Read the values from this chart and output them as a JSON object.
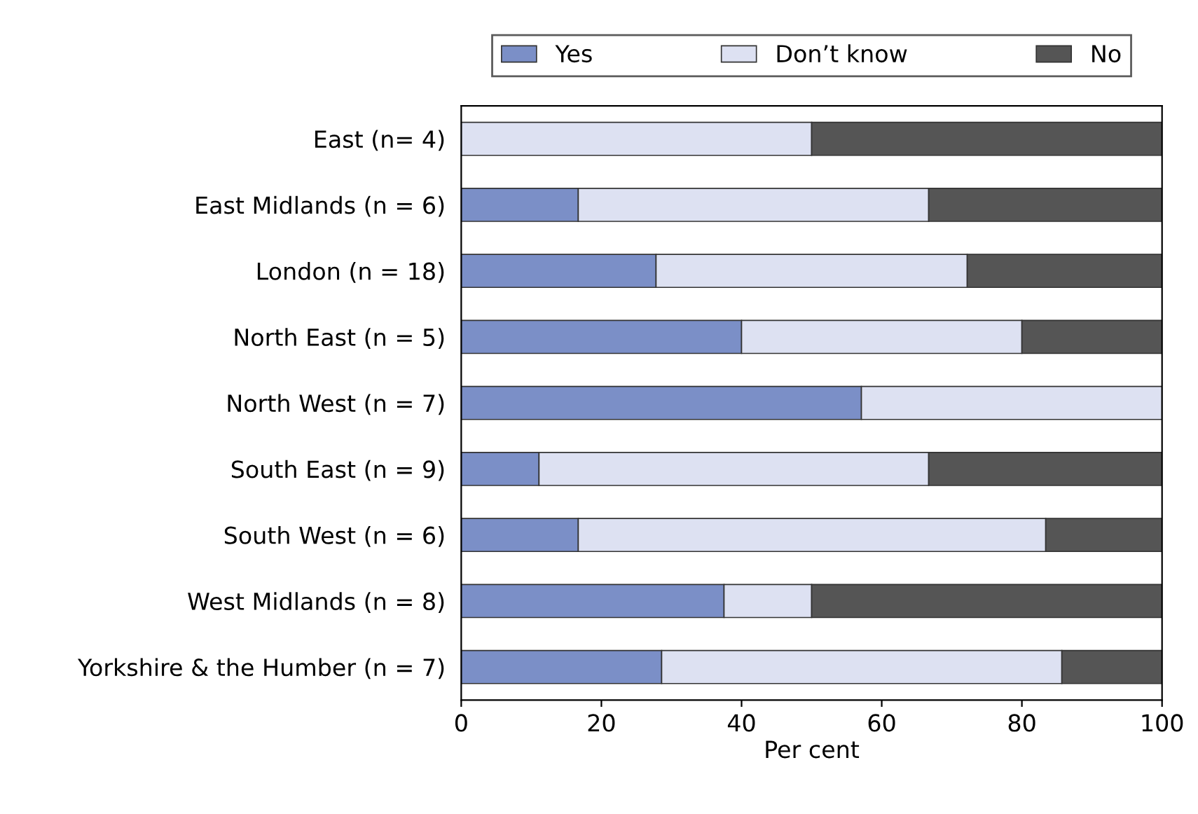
{
  "chart_data": {
    "type": "bar",
    "orientation": "horizontal",
    "stacked": true,
    "xlabel": "Per cent",
    "categories": [
      "East (n= 4)",
      "East Midlands (n = 6)",
      "London (n = 18)",
      "North East (n = 5)",
      "North West (n = 7)",
      "South East (n = 9)",
      "South West (n = 6)",
      "West Midlands (n = 8)",
      "Yorkshire & the Humber (n = 7)"
    ],
    "series": [
      {
        "name": "Yes",
        "color": "#7b8fc7",
        "values": [
          0,
          16.7,
          27.8,
          40,
          57.1,
          11.1,
          16.7,
          37.5,
          28.6
        ]
      },
      {
        "name": "Don’t know",
        "color": "#dde1f2",
        "values": [
          50,
          50,
          44.4,
          40,
          42.9,
          55.6,
          66.7,
          12.5,
          57.1
        ]
      },
      {
        "name": "No",
        "color": "#555555",
        "values": [
          50,
          33.3,
          27.8,
          20,
          null,
          33.3,
          16.7,
          50,
          14.3
        ]
      }
    ],
    "xlim": [
      0,
      100
    ],
    "xticks": [
      0,
      20,
      40,
      60,
      80,
      100
    ],
    "grid": false,
    "legend": "top"
  }
}
